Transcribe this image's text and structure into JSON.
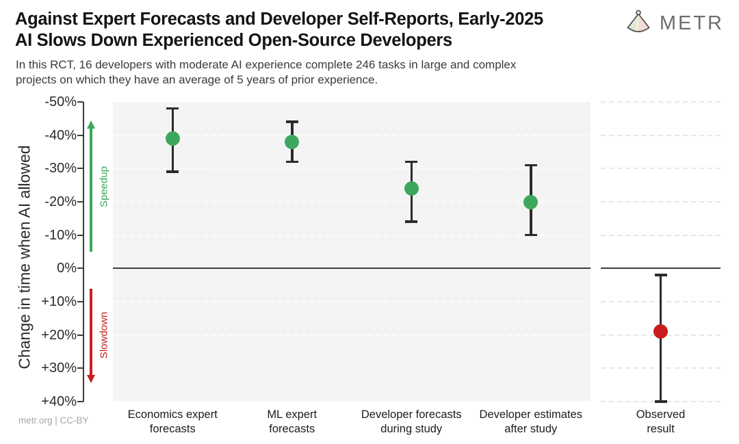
{
  "header": {
    "title_lines": [
      "Against Expert Forecasts and Developer Self-Reports, Early-2025",
      "AI Slows Down Experienced Open-Source Developers"
    ],
    "subtitle_lines": [
      "In this RCT, 16 developers with moderate AI experience complete 246 tasks in large and complex",
      "projects on which they have an average of 5 years of prior experience."
    ],
    "logo_text": "METR"
  },
  "footer": {
    "credit": "metr.org  |  CC-BY"
  },
  "chart_data": {
    "type": "scatter",
    "subtype": "point-estimates-with-error-bars",
    "ylabel": "Change in time when AI allowed",
    "ylim": [
      -50,
      40
    ],
    "y_axis_inverted_note": "negative (speedup) plotted at top, positive (slowdown) at bottom",
    "grid": "horizontal-dashed",
    "zero_line": 0,
    "yticks": [
      {
        "value": -50,
        "label": "-50%"
      },
      {
        "value": -40,
        "label": "-40%"
      },
      {
        "value": -30,
        "label": "-30%"
      },
      {
        "value": -20,
        "label": "-20%"
      },
      {
        "value": -10,
        "label": "-10%"
      },
      {
        "value": 0,
        "label": "0%"
      },
      {
        "value": 10,
        "label": "+10%"
      },
      {
        "value": 20,
        "label": "+20%"
      },
      {
        "value": 30,
        "label": "+30%"
      },
      {
        "value": 40,
        "label": "+40%"
      }
    ],
    "annotations": [
      {
        "text": "Speedup",
        "direction": "up",
        "color": "#3ca85c",
        "range": [
          -44,
          -5
        ]
      },
      {
        "text": "Slowdown",
        "direction": "down",
        "color": "#c9201f",
        "range": [
          6,
          34
        ]
      }
    ],
    "panels": [
      {
        "name": "forecasts",
        "points": [
          {
            "label_lines": [
              "Economics expert",
              "forecasts"
            ],
            "value": -39,
            "ci_low": -48,
            "ci_high": -29,
            "color": "#3ca85c"
          },
          {
            "label_lines": [
              "ML expert",
              "forecasts"
            ],
            "value": -38,
            "ci_low": -44,
            "ci_high": -32,
            "color": "#3ca85c"
          },
          {
            "label_lines": [
              "Developer forecasts",
              "during study"
            ],
            "value": -24,
            "ci_low": -32,
            "ci_high": -14,
            "color": "#3ca85c"
          },
          {
            "label_lines": [
              "Developer estimates",
              "after study"
            ],
            "value": -20,
            "ci_low": -31,
            "ci_high": -10,
            "color": "#3ca85c"
          }
        ]
      },
      {
        "name": "observed",
        "points": [
          {
            "label_lines": [
              "Observed",
              "result"
            ],
            "value": 19,
            "ci_low": 2,
            "ci_high": 40,
            "color": "#c91d1d"
          }
        ]
      }
    ],
    "colors": {
      "error_bar": "#2b2b2b",
      "panel_bg": "#f4f4f5",
      "grid_on_panel": "#fdfdfd",
      "grid_on_white": "#e7e7e9",
      "zero_line": "#3d3d3d",
      "speedup": "#3ca85c",
      "slowdown": "#c9201f"
    }
  }
}
